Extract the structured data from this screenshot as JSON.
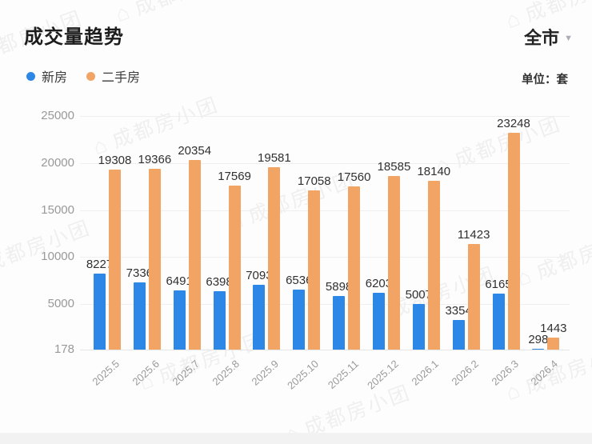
{
  "header": {
    "title": "成交量趋势",
    "region_selector": {
      "label": "全市",
      "caret_glyph": "▼"
    },
    "unit_label": "单位：套"
  },
  "legend": [
    {
      "key": "new-home",
      "label": "新房",
      "color": "#2C87E6"
    },
    {
      "key": "resale-home",
      "label": "二手房",
      "color": "#F2A464"
    }
  ],
  "watermark": {
    "logo_glyph": "⌂",
    "text": "成都房小团"
  },
  "colors": {
    "new_home_bar": "#2C87E6",
    "resale_home_bar": "#F2A464",
    "axis_text": "#999999",
    "value_text": "#303030",
    "gridline": "#efefef"
  },
  "chart_data": {
    "type": "bar",
    "title": "成交量趋势",
    "unit": "套",
    "categories": [
      "2025.5",
      "2025.6",
      "2025.7",
      "2025.8",
      "2025.9",
      "2025.10",
      "2025.11",
      "2025.12",
      "2026.1",
      "2026.2",
      "2026.3",
      "2026.4"
    ],
    "series": [
      {
        "name": "新房",
        "key": "new-home",
        "color": "#2C87E6",
        "values": [
          8227,
          7336,
          6491,
          6398,
          7093,
          6536,
          5898,
          6203,
          5007,
          3354,
          6165,
          298
        ]
      },
      {
        "name": "二手房",
        "key": "resale-home",
        "color": "#F2A464",
        "values": [
          19308,
          19366,
          20354,
          17569,
          19581,
          17058,
          17560,
          18585,
          18140,
          11423,
          23248,
          1443
        ]
      }
    ],
    "xlabel": "",
    "ylabel": "",
    "ylim": [
      178,
      25000
    ],
    "y_ticks": [
      25000,
      20000,
      15000,
      10000,
      5000,
      178
    ],
    "grid": true,
    "legend_position": "top-left",
    "value_labels_shown": true
  }
}
